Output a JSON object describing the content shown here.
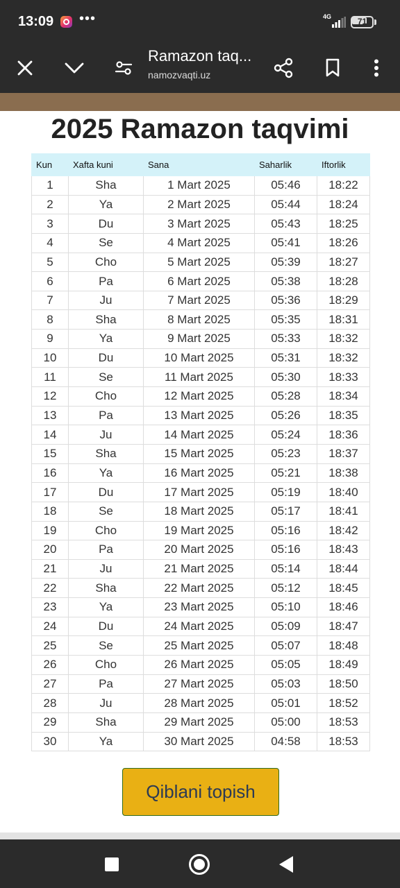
{
  "status_bar": {
    "time": "13:09",
    "network": "4G",
    "battery": "71",
    "battery_level": 0.71,
    "more_indicator": "•••"
  },
  "browser": {
    "title": "Ramazon taq...",
    "url": "namozvaqti.uz",
    "icons": [
      "close-icon",
      "chevron-down-icon",
      "site-settings-icon",
      "share-icon",
      "bookmark-icon",
      "more-vert-icon"
    ]
  },
  "page": {
    "title": "2025 Ramazon taqvimi",
    "table": {
      "headers": [
        "Kun",
        "Xafta kuni",
        "Sana",
        "Saharlik",
        "Iftorlik"
      ],
      "rows": [
        [
          "1",
          "Sha",
          "1 Mart 2025",
          "05:46",
          "18:22"
        ],
        [
          "2",
          "Ya",
          "2 Mart 2025",
          "05:44",
          "18:24"
        ],
        [
          "3",
          "Du",
          "3 Mart 2025",
          "05:43",
          "18:25"
        ],
        [
          "4",
          "Se",
          "4 Mart 2025",
          "05:41",
          "18:26"
        ],
        [
          "5",
          "Cho",
          "5 Mart 2025",
          "05:39",
          "18:27"
        ],
        [
          "6",
          "Pa",
          "6 Mart 2025",
          "05:38",
          "18:28"
        ],
        [
          "7",
          "Ju",
          "7 Mart 2025",
          "05:36",
          "18:29"
        ],
        [
          "8",
          "Sha",
          "8 Mart 2025",
          "05:35",
          "18:31"
        ],
        [
          "9",
          "Ya",
          "9 Mart 2025",
          "05:33",
          "18:32"
        ],
        [
          "10",
          "Du",
          "10 Mart 2025",
          "05:31",
          "18:32"
        ],
        [
          "11",
          "Se",
          "11 Mart 2025",
          "05:30",
          "18:33"
        ],
        [
          "12",
          "Cho",
          "12 Mart 2025",
          "05:28",
          "18:34"
        ],
        [
          "13",
          "Pa",
          "13 Mart 2025",
          "05:26",
          "18:35"
        ],
        [
          "14",
          "Ju",
          "14 Mart 2025",
          "05:24",
          "18:36"
        ],
        [
          "15",
          "Sha",
          "15 Mart 2025",
          "05:23",
          "18:37"
        ],
        [
          "16",
          "Ya",
          "16 Mart 2025",
          "05:21",
          "18:38"
        ],
        [
          "17",
          "Du",
          "17 Mart 2025",
          "05:19",
          "18:40"
        ],
        [
          "18",
          "Se",
          "18 Mart 2025",
          "05:17",
          "18:41"
        ],
        [
          "19",
          "Cho",
          "19 Mart 2025",
          "05:16",
          "18:42"
        ],
        [
          "20",
          "Pa",
          "20 Mart 2025",
          "05:16",
          "18:43"
        ],
        [
          "21",
          "Ju",
          "21 Mart 2025",
          "05:14",
          "18:44"
        ],
        [
          "22",
          "Sha",
          "22 Mart 2025",
          "05:12",
          "18:45"
        ],
        [
          "23",
          "Ya",
          "23 Mart 2025",
          "05:10",
          "18:46"
        ],
        [
          "24",
          "Du",
          "24 Mart 2025",
          "05:09",
          "18:47"
        ],
        [
          "25",
          "Se",
          "25 Mart 2025",
          "05:07",
          "18:48"
        ],
        [
          "26",
          "Cho",
          "26 Mart 2025",
          "05:05",
          "18:49"
        ],
        [
          "27",
          "Pa",
          "27 Mart 2025",
          "05:03",
          "18:50"
        ],
        [
          "28",
          "Ju",
          "28 Mart 2025",
          "05:01",
          "18:52"
        ],
        [
          "29",
          "Sha",
          "29 Mart 2025",
          "05:00",
          "18:53"
        ],
        [
          "30",
          "Ya",
          "30 Mart 2025",
          "04:58",
          "18:53"
        ]
      ]
    },
    "qibla_button": "Qiblani topish"
  },
  "nav": {
    "icons": [
      "recents-square-icon",
      "home-circle-icon",
      "back-triangle-icon"
    ]
  },
  "colors": {
    "system_bar": "#2b2b2b",
    "header_row": "#d4f2f9",
    "button_bg": "#e9b014",
    "button_border": "#2f6b1f",
    "strip": "#8a6d4f"
  }
}
